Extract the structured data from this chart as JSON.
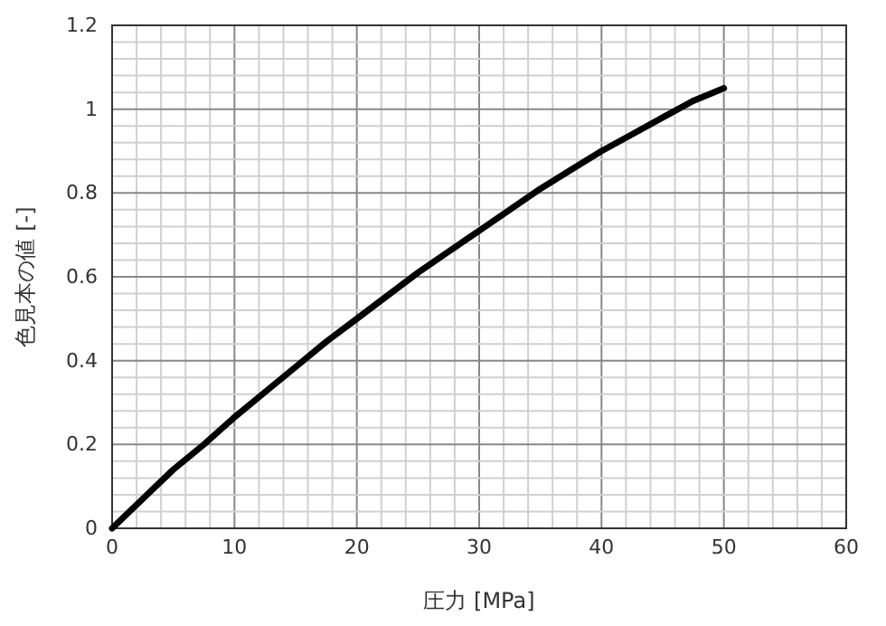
{
  "chart_data": {
    "type": "line",
    "xlabel": "圧力 [MPa]",
    "ylabel": "色見本の値 [-]",
    "x": [
      0,
      2.5,
      5,
      7.5,
      10,
      12.5,
      15,
      17.5,
      20,
      22.5,
      25,
      27.5,
      30,
      32.5,
      35,
      37.5,
      40,
      42.5,
      45,
      47.5,
      50
    ],
    "series": [
      {
        "color": "#000000",
        "values": [
          0,
          0.07,
          0.14,
          0.2,
          0.265,
          0.325,
          0.385,
          0.445,
          0.5,
          0.555,
          0.61,
          0.66,
          0.71,
          0.76,
          0.81,
          0.855,
          0.9,
          0.94,
          0.98,
          1.02,
          1.05
        ]
      }
    ],
    "xlim": [
      0,
      60
    ],
    "xticks": [
      0,
      {
        "value": 2,
        "label": null
      },
      {
        "value": 4,
        "label": null
      },
      {
        "value": 6,
        "label": null
      },
      {
        "value": 8,
        "label": null
      },
      10,
      {
        "value": 12,
        "label": null
      },
      {
        "value": 14,
        "label": null
      },
      {
        "value": 16,
        "label": null
      },
      {
        "value": 18,
        "label": null
      },
      20,
      {
        "value": 22,
        "label": null
      },
      {
        "value": 24,
        "label": null
      },
      {
        "value": 26,
        "label": null
      },
      {
        "value": 28,
        "label": null
      },
      30,
      {
        "value": 32,
        "label": null
      },
      {
        "value": 34,
        "label": null
      },
      {
        "value": 36,
        "label": null
      },
      {
        "value": 38,
        "label": null
      },
      40,
      {
        "value": 42,
        "label": null
      },
      {
        "value": 44,
        "label": null
      },
      {
        "value": 46,
        "label": null
      },
      {
        "value": 48,
        "label": null
      },
      50,
      {
        "value": 52,
        "label": null
      },
      {
        "value": 54,
        "label": null
      },
      {
        "value": 56,
        "label": null
      },
      {
        "value": 58,
        "label": null
      },
      60
    ],
    "ylim": [
      0,
      1.2
    ],
    "yticks": [
      0,
      {
        "value": 0.04,
        "label": null
      },
      {
        "value": 0.08,
        "label": null
      },
      {
        "value": 0.12,
        "label": null
      },
      {
        "value": 0.16,
        "label": null
      },
      0.2,
      {
        "value": 0.24,
        "label": null
      },
      {
        "value": 0.28,
        "label": null
      },
      {
        "value": 0.32,
        "label": null
      },
      {
        "value": 0.36,
        "label": null
      },
      0.4,
      {
        "value": 0.44,
        "label": null
      },
      {
        "value": 0.48,
        "label": null
      },
      {
        "value": 0.52,
        "label": null
      },
      {
        "value": 0.56,
        "label": null
      },
      0.6,
      {
        "value": 0.64,
        "label": null
      },
      {
        "value": 0.68,
        "label": null
      },
      {
        "value": 0.72,
        "label": null
      },
      {
        "value": 0.76,
        "label": null
      },
      0.8,
      {
        "value": 0.84,
        "label": null
      },
      {
        "value": 0.88,
        "label": null
      },
      {
        "value": 0.92,
        "label": null
      },
      {
        "value": 0.96,
        "label": null
      },
      1,
      {
        "value": 1.04,
        "label": null
      },
      {
        "value": 1.08,
        "label": null
      },
      {
        "value": 1.12,
        "label": null
      },
      {
        "value": 1.16,
        "label": null
      },
      1.2
    ],
    "grid": true,
    "marker": "none",
    "line_style": "solid"
  }
}
